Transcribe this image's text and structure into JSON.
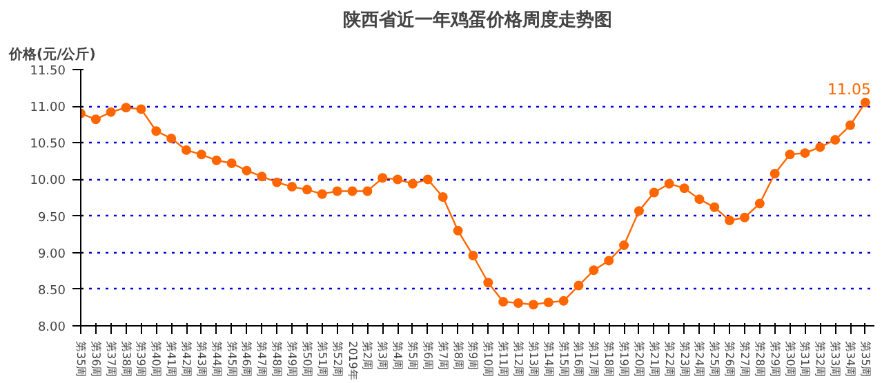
{
  "chart_data": {
    "type": "line",
    "title": "陕西省近一年鸡蛋价格周度走势图",
    "ylabel": "价格(元/公斤)",
    "categories": [
      "第35周",
      "第36周",
      "第37周",
      "第38周",
      "第39周",
      "第40周",
      "第41周",
      "第42周",
      "第43周",
      "第44周",
      "第45周",
      "第46周",
      "第47周",
      "第48周",
      "第49周",
      "第50周",
      "第51周",
      "第52周",
      "2019年",
      "第2周",
      "第3周",
      "第4周",
      "第5周",
      "第6周",
      "第7周",
      "第8周",
      "第9周",
      "第10周",
      "第11周",
      "第12周",
      "第13周",
      "第14周",
      "第15周",
      "第16周",
      "第17周",
      "第18周",
      "第19周",
      "第20周",
      "第21周",
      "第22周",
      "第23周",
      "第24周",
      "第25周",
      "第26周",
      "第27周",
      "第28周",
      "第29周",
      "第30周",
      "第31周",
      "第32周",
      "第33周",
      "第34周",
      "第35周"
    ],
    "series": [
      {
        "color": "#ff6600",
        "values": [
          10.9,
          10.82,
          10.92,
          10.98,
          10.96,
          10.66,
          10.56,
          10.4,
          10.34,
          10.26,
          10.22,
          10.12,
          10.04,
          9.96,
          9.9,
          9.86,
          9.8,
          9.84,
          9.84,
          9.84,
          10.02,
          10.0,
          9.94,
          10.0,
          9.76,
          9.3,
          8.96,
          8.59,
          8.33,
          8.31,
          8.29,
          8.32,
          8.34,
          8.55,
          8.76,
          8.89,
          9.1,
          9.57,
          9.82,
          9.94,
          9.88,
          9.73,
          9.62,
          9.44,
          9.48,
          9.67,
          10.08,
          10.34,
          10.36,
          10.44,
          10.54,
          10.74,
          11.05
        ],
        "value_labels": [
          null,
          null,
          null,
          null,
          null,
          null,
          null,
          null,
          null,
          null,
          null,
          null,
          null,
          null,
          null,
          null,
          null,
          null,
          null,
          null,
          null,
          null,
          null,
          null,
          null,
          null,
          null,
          null,
          null,
          null,
          null,
          null,
          null,
          null,
          null,
          null,
          null,
          null,
          null,
          null,
          null,
          null,
          null,
          null,
          null,
          null,
          null,
          null,
          null,
          null,
          null,
          null,
          "11.05"
        ]
      }
    ],
    "ylim": [
      8.0,
      11.5
    ],
    "yticks": [
      {
        "value": 8.0,
        "label": "8.00"
      },
      {
        "value": 8.5,
        "label": "8.50"
      },
      {
        "value": 9.0,
        "label": "9.00"
      },
      {
        "value": 9.5,
        "label": "9.50"
      },
      {
        "value": 10.0,
        "label": "10.00"
      },
      {
        "value": 10.5,
        "label": "10.50"
      },
      {
        "value": 11.0,
        "label": "11.00"
      },
      {
        "value": 11.5,
        "label": "11.50"
      }
    ],
    "grid": "y",
    "marker": "circle",
    "line_style": "solid"
  }
}
